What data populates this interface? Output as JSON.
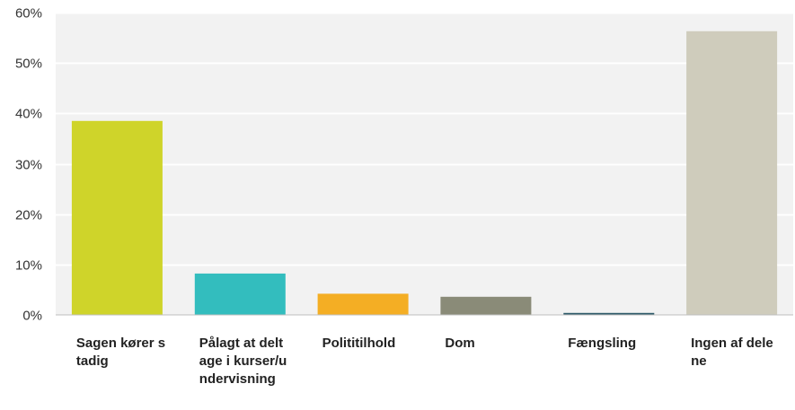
{
  "chart_data": {
    "type": "bar",
    "title": "",
    "xlabel": "",
    "ylabel": "",
    "ylim": [
      0,
      60
    ],
    "yticks": [
      "0%",
      "10%",
      "20%",
      "30%",
      "40%",
      "50%",
      "60%"
    ],
    "grid": true,
    "categories": [
      "Sagen kører stadig",
      "Pålagt at deltage i kurser/undervisning",
      "Polititilhold",
      "Dom",
      "Fængsling",
      "Ingen af delene"
    ],
    "values": [
      38.5,
      8.2,
      4.2,
      3.6,
      0.4,
      56.3
    ],
    "colors": [
      "#cfd42a",
      "#33bdbe",
      "#f4ae24",
      "#8a8b78",
      "#2f5b6a",
      "#cfccbc"
    ]
  }
}
